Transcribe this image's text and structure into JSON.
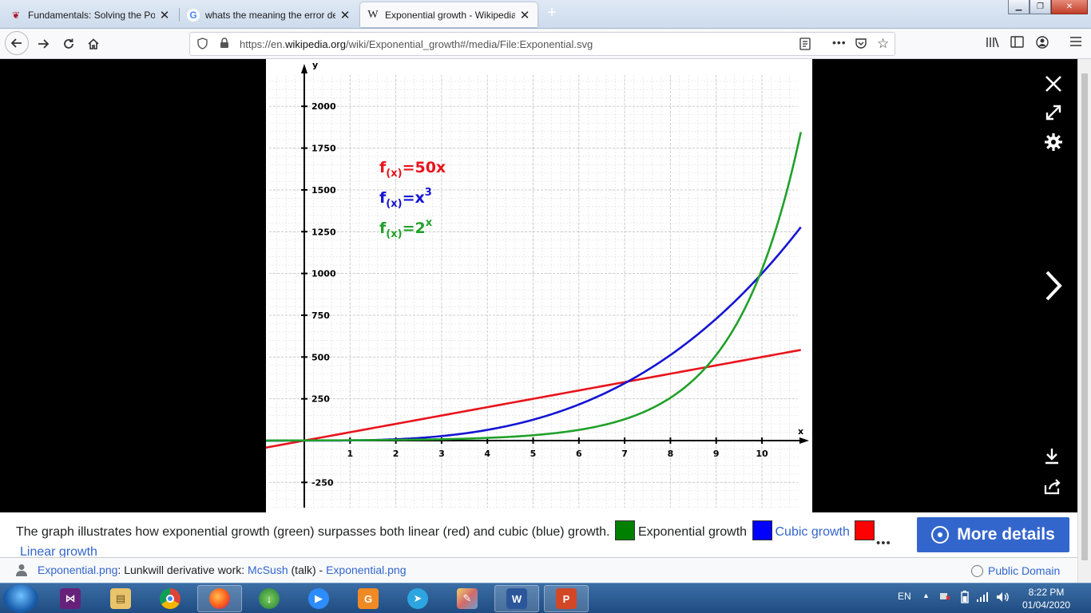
{
  "browser": {
    "tabs": [
      {
        "title": "Fundamentals: Solving the Poi",
        "icon": "kaggle-cherry-icon",
        "active": false
      },
      {
        "title": "whats the meaning the error de",
        "icon": "google-g-icon",
        "active": false
      },
      {
        "title": "Exponential growth - Wikipedia",
        "icon": "wikipedia-w-icon",
        "active": true
      }
    ],
    "url_prefix": "https://en.",
    "url_domain": "wikipedia.org",
    "url_path": "/wiki/Exponential_growth#/media/File:Exponential.svg"
  },
  "chart_data": {
    "type": "line",
    "xlabel": "x",
    "ylabel": "y",
    "xlim": [
      -0.85,
      10.85
    ],
    "ylim": [
      -410,
      2250
    ],
    "x_ticks": [
      1,
      2,
      3,
      4,
      5,
      6,
      7,
      8,
      9,
      10
    ],
    "y_ticks": [
      -250,
      250,
      500,
      750,
      1000,
      1250,
      1500,
      1750,
      2000
    ],
    "grid": true,
    "legend_position": "top-left",
    "series": [
      {
        "name": "f(x)=50x",
        "base": "f",
        "sub": "(x)",
        "eq": "=50x",
        "sup": "",
        "color": "#e8141c",
        "formula": "linear",
        "x": [
          -0.85,
          10.85
        ],
        "y": [
          -42.5,
          542.5
        ]
      },
      {
        "name": "f(x)=x3",
        "base": "f",
        "sub": "(x)",
        "eq": "=x",
        "sup": "3",
        "color": "#1414d2",
        "formula": "cubic",
        "x": [
          -0.85,
          0,
          2,
          4,
          6,
          7,
          8,
          9,
          10,
          10.85
        ],
        "y": [
          -0.6,
          0,
          8,
          64,
          216,
          343,
          512,
          729,
          1000,
          1277
        ]
      },
      {
        "name": "f(x)=2x",
        "base": "f",
        "sub": "(x)",
        "eq": "=2",
        "sup": "x",
        "color": "#21a02a",
        "formula": "exponential",
        "x": [
          -0.85,
          0,
          2,
          4,
          6,
          7,
          8,
          9,
          10,
          10.85
        ],
        "y": [
          0.6,
          1,
          4,
          16,
          64,
          128,
          256,
          512,
          1024,
          1845
        ]
      }
    ]
  },
  "caption": {
    "text": "The graph illustrates how exponential growth (green) surpasses both linear (red) and cubic (blue) growth.",
    "legend": [
      {
        "label": "Exponential growth",
        "color": "#008000",
        "is_link": false
      },
      {
        "label": "Cubic growth",
        "color": "#0000ff",
        "is_link": true
      },
      {
        "label": "Linear growth",
        "color": "#ff0000",
        "is_link": true
      }
    ],
    "more_details": "More details",
    "ellipsis": "•••"
  },
  "credit": {
    "file": "Exponential.png",
    "colon": ": Lunkwill derivative work: ",
    "author": "McSush",
    "talk": " (talk)",
    "dash": " - ",
    "source": "Exponential.png",
    "license": "Public Domain"
  },
  "taskbar": {
    "lang": "EN",
    "time": "8:22 PM",
    "date": "01/04/2020"
  }
}
